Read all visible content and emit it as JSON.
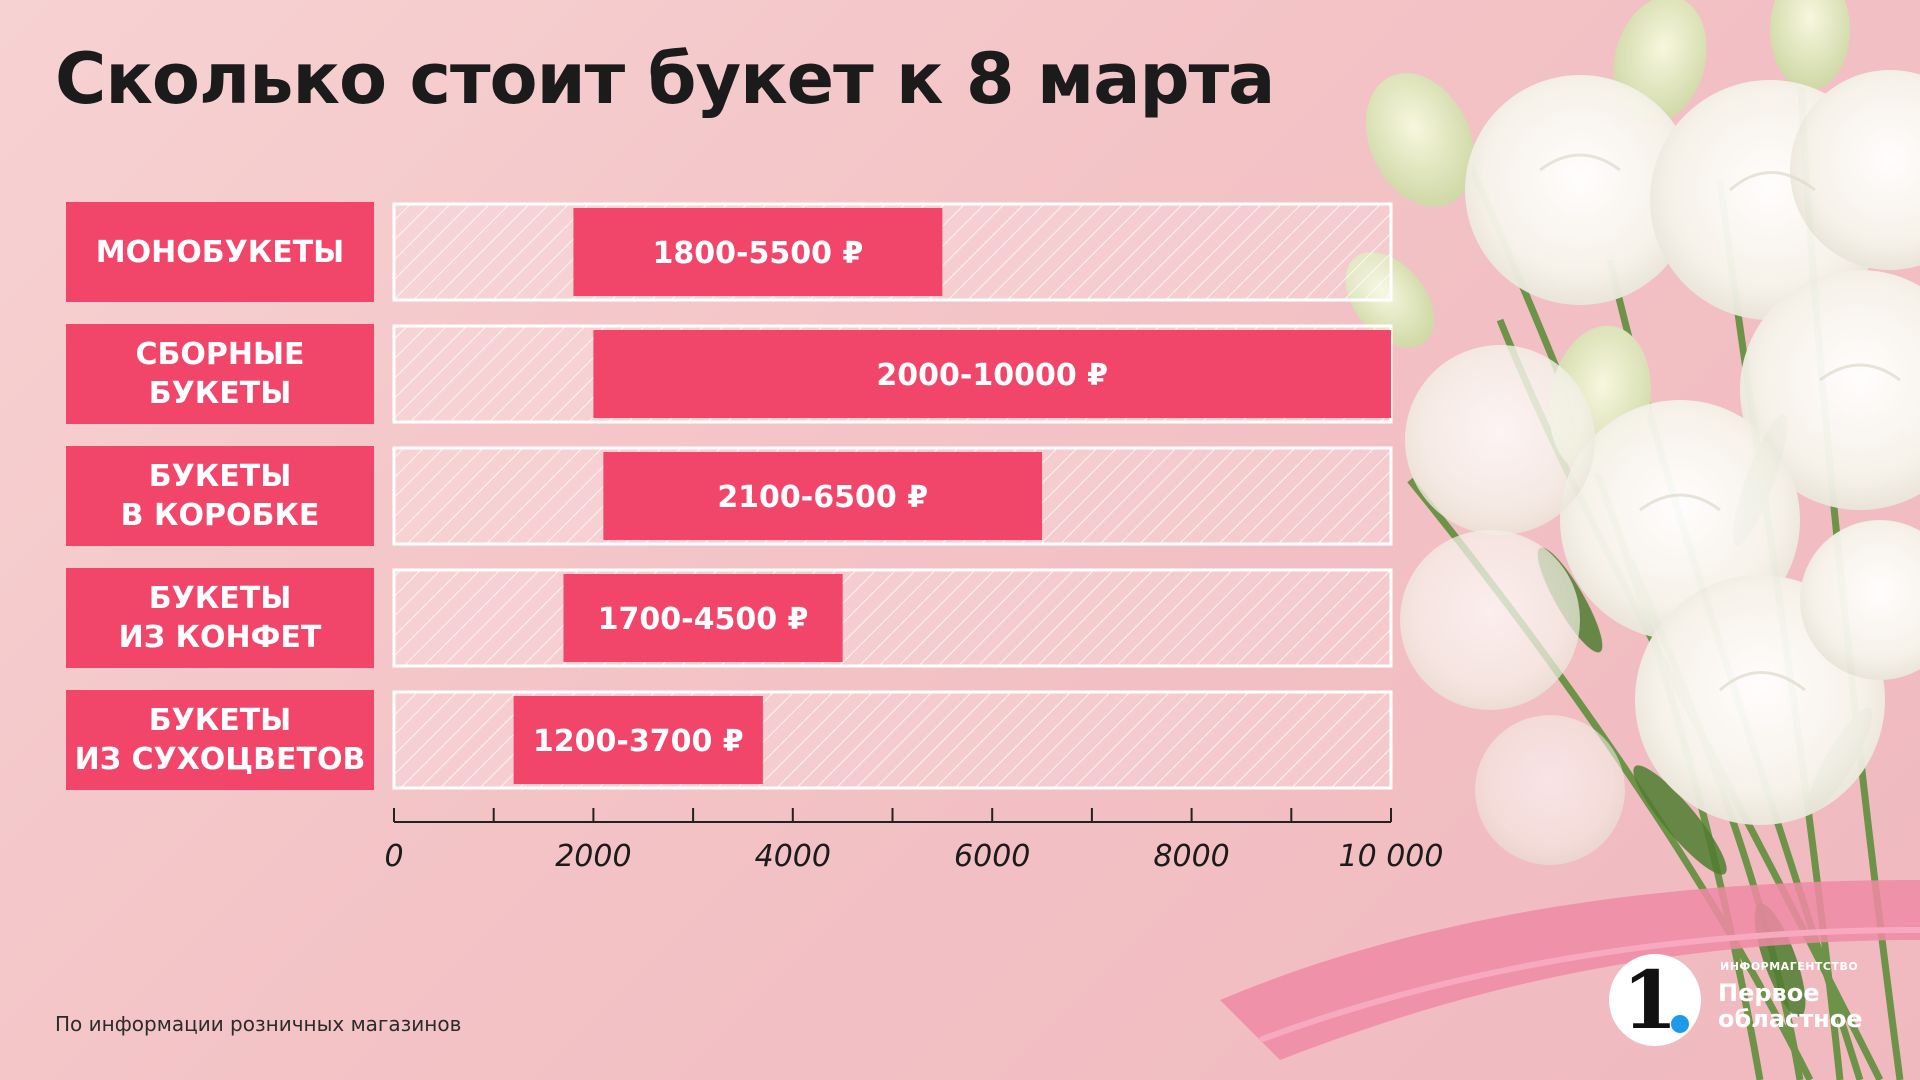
{
  "title": "Сколько стоит букет к 8 марта",
  "chart_data": {
    "type": "bar",
    "orientation": "horizontal",
    "subtype": "range",
    "categories": [
      "МОНОБУКЕТЫ",
      "СБОРНЫЕ\nБУКЕТЫ",
      "БУКЕТЫ\nВ КОРОБКЕ",
      "БУКЕТЫ\nИЗ КОНФЕТ",
      "БУКЕТЫ\nИЗ СУХОЦВЕТОВ"
    ],
    "ranges": [
      [
        1800,
        5500
      ],
      [
        2000,
        10000
      ],
      [
        2100,
        6500
      ],
      [
        1700,
        4500
      ],
      [
        1200,
        3700
      ]
    ],
    "data_labels": [
      "1800-5500 ₽",
      "2000-10000 ₽",
      "2100-6500 ₽",
      "1700-4500 ₽",
      "1200-3700 ₽"
    ],
    "xlim": [
      0,
      10000
    ],
    "xticks": [
      0,
      2000,
      4000,
      6000,
      8000,
      10000
    ],
    "xtick_labels": [
      "0",
      "2000",
      "4000",
      "6000",
      "8000",
      "10 000"
    ],
    "minor_ticks": [
      1000,
      3000,
      5000,
      7000,
      9000
    ],
    "xlabel": "",
    "ylabel": "",
    "grid": false,
    "bar_color": "#f2456a"
  },
  "footnote": "По информации розничных магазинов",
  "brand": {
    "top": "ИНФОРМАГЕНТСТВО",
    "name": "Первое\nобластное",
    "logo_digit": "1",
    "dot_color": "#1e9be8"
  },
  "colors": {
    "accent": "#f2456a",
    "text": "#1b1b1b"
  }
}
